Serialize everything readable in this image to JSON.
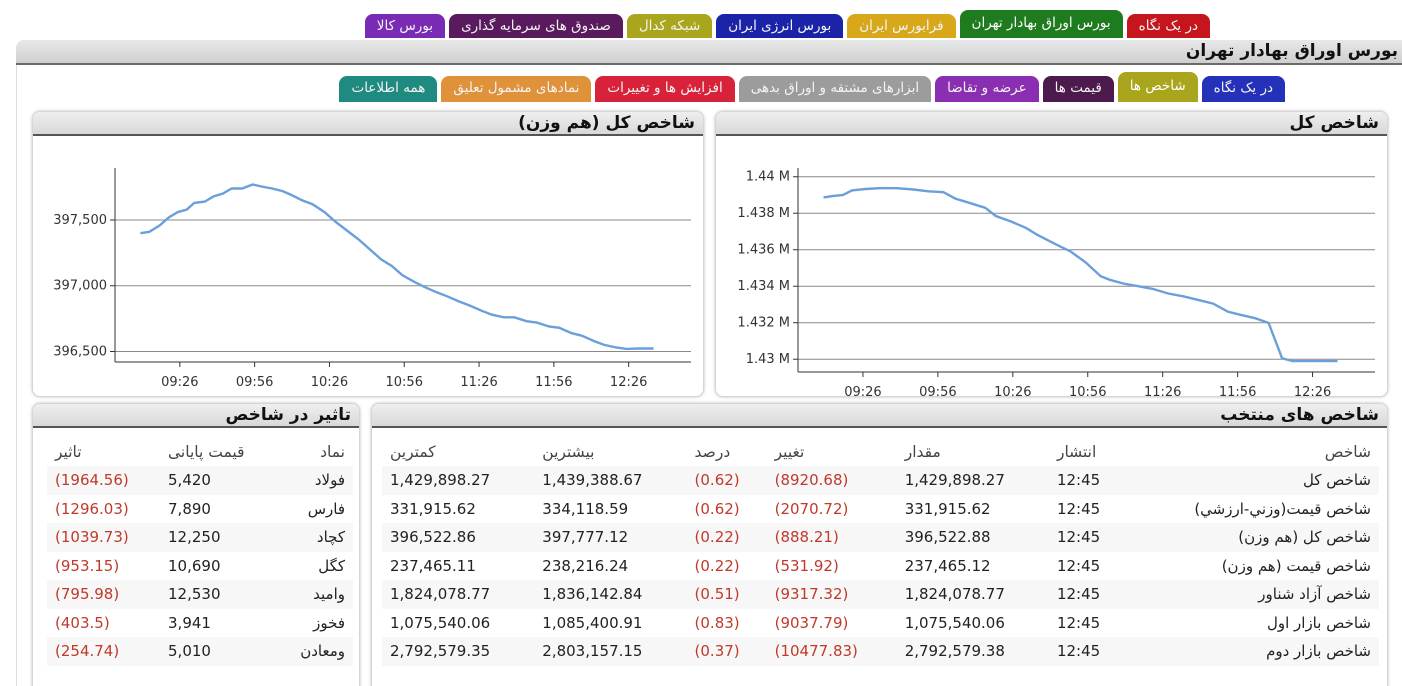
{
  "top_tabs": [
    {
      "label": "در یک نگاه",
      "color": "#c4161c",
      "active": false
    },
    {
      "label": "بورس اوراق بهادار تهران",
      "color": "#1e7b1e",
      "active": true
    },
    {
      "label": "فرابورس ایران",
      "color": "#d8a81a",
      "active": false
    },
    {
      "label": "بورس انرژی ایران",
      "color": "#1b24a8",
      "active": false
    },
    {
      "label": "شبکه کدال",
      "color": "#a9a51c",
      "active": false
    },
    {
      "label": "صندوق های سرمایه گذاری",
      "color": "#5a1a5e",
      "active": false
    },
    {
      "label": "بورس کالا",
      "color": "#7a2bb6",
      "active": false
    }
  ],
  "page_title": "بورس اوراق بهادار تهران",
  "sub_tabs": [
    {
      "label": "در یک نگاه",
      "color": "#2431b8",
      "active": false
    },
    {
      "label": "شاخص ها",
      "color": "#a9a51c",
      "active": true
    },
    {
      "label": "قیمت ها",
      "color": "#4c1a4c",
      "active": false
    },
    {
      "label": "عرضه و تقاضا",
      "color": "#8a2fb2",
      "active": false
    },
    {
      "label": "ابزارهای مشتقه و اوراق بدهی",
      "color": "#9c9c9c",
      "active": false
    },
    {
      "label": "افزایش ها و تغییرات",
      "color": "#d8223a",
      "active": false
    },
    {
      "label": "نمادهای مشمول تعلیق",
      "color": "#e0923a",
      "active": false
    },
    {
      "label": "همه اطلاعات",
      "color": "#1f8a80",
      "active": false
    }
  ],
  "chart_data": [
    {
      "type": "line",
      "title": "شاخص کل",
      "x_ticks": [
        "09:26",
        "09:56",
        "10:26",
        "10:56",
        "11:26",
        "11:56",
        "12:26"
      ],
      "y_ticks": [
        "1.43 M",
        "1.432 M",
        "1.434 M",
        "1.436 M",
        "1.438 M",
        "1.44 M"
      ],
      "ylim": [
        1429300,
        1440150
      ],
      "xlim": [
        9.0,
        12.85
      ],
      "grid": true,
      "color": "#6a9fdb",
      "x": [
        9.17,
        9.23,
        9.3,
        9.36,
        9.45,
        9.56,
        9.66,
        9.77,
        9.87,
        9.97,
        10.05,
        10.15,
        10.25,
        10.32,
        10.42,
        10.52,
        10.6,
        10.72,
        10.82,
        10.92,
        11.02,
        11.08,
        11.17,
        11.27,
        11.37,
        11.47,
        11.57,
        11.67,
        11.77,
        11.87,
        11.97,
        12.05,
        12.14,
        12.23,
        12.3,
        12.42,
        12.5,
        12.6
      ],
      "y": [
        1438870,
        1438940,
        1439000,
        1439250,
        1439330,
        1439380,
        1439370,
        1439300,
        1439200,
        1439150,
        1438800,
        1438550,
        1438300,
        1437850,
        1437550,
        1437200,
        1436800,
        1436300,
        1435900,
        1435300,
        1434550,
        1434350,
        1434150,
        1434000,
        1433850,
        1433600,
        1433450,
        1433250,
        1433050,
        1432600,
        1432400,
        1432250,
        1431990,
        1430050,
        1429900,
        1429898,
        1429898,
        1429898
      ]
    },
    {
      "type": "line",
      "title": "شاخص کل (هم وزن)",
      "x_ticks": [
        "09:26",
        "09:56",
        "10:26",
        "10:56",
        "11:26",
        "11:56",
        "12:26"
      ],
      "y_ticks": [
        "396,500",
        "397,000",
        "397,500"
      ],
      "ylim": [
        396420,
        397850
      ],
      "xlim": [
        9.0,
        12.85
      ],
      "grid": true,
      "color": "#6a9fdb",
      "x": [
        9.17,
        9.23,
        9.3,
        9.36,
        9.42,
        9.48,
        9.53,
        9.6,
        9.66,
        9.72,
        9.78,
        9.85,
        9.92,
        9.98,
        10.05,
        10.12,
        10.18,
        10.25,
        10.32,
        10.4,
        10.47,
        10.55,
        10.63,
        10.7,
        10.78,
        10.85,
        10.92,
        11.0,
        11.07,
        11.15,
        11.22,
        11.3,
        11.37,
        11.45,
        11.52,
        11.6,
        11.67,
        11.75,
        11.82,
        11.9,
        11.97,
        12.05,
        12.12,
        12.2,
        12.27,
        12.35,
        12.42,
        12.5,
        12.6
      ],
      "y": [
        397400,
        397410,
        397460,
        397520,
        397560,
        397580,
        397630,
        397640,
        397680,
        397700,
        397740,
        397740,
        397770,
        397755,
        397740,
        397720,
        397690,
        397650,
        397620,
        397560,
        397490,
        397420,
        397350,
        397280,
        397200,
        397150,
        397080,
        397030,
        396990,
        396950,
        396920,
        396880,
        396850,
        396810,
        396780,
        396760,
        396760,
        396730,
        396720,
        396690,
        396680,
        396640,
        396620,
        396580,
        396550,
        396530,
        396520,
        396523,
        396523
      ]
    }
  ],
  "impact": {
    "title": "تاثیر در شاخص",
    "headers": [
      "نماد",
      "قیمت پایانی",
      "تاثیر"
    ],
    "rows": [
      [
        "فولاد",
        "5,420",
        "(1964.56)"
      ],
      [
        "فارس",
        "7,890",
        "(1296.03)"
      ],
      [
        "کچاد",
        "12,250",
        "(1039.73)"
      ],
      [
        "کگل",
        "10,690",
        "(953.15)"
      ],
      [
        "وامید",
        "12,530",
        "(795.98)"
      ],
      [
        "فخوز",
        "3,941",
        "(403.5)"
      ],
      [
        "ومعادن",
        "5,010",
        "(254.74)"
      ]
    ]
  },
  "indices": {
    "title": "شاخص های منتخب",
    "headers": [
      "شاخص",
      "انتشار",
      "مقدار",
      "تغییر",
      "درصد",
      "بیشترین",
      "کمترین"
    ],
    "rows": [
      [
        "شاخص کل",
        "12:45",
        "1,429,898.27",
        "(8920.68)",
        "(0.62)",
        "1,439,388.67",
        "1,429,898.27"
      ],
      [
        "شاخص قیمت(وزني-ارزشي)",
        "12:45",
        "331,915.62",
        "(2070.72)",
        "(0.62)",
        "334,118.59",
        "331,915.62"
      ],
      [
        "شاخص کل (هم وزن)",
        "12:45",
        "396,522.88",
        "(888.21)",
        "(0.22)",
        "397,777.12",
        "396,522.86"
      ],
      [
        "شاخص قیمت (هم وزن)",
        "12:45",
        "237,465.12",
        "(531.92)",
        "(0.22)",
        "238,216.24",
        "237,465.11"
      ],
      [
        "شاخص آزاد شناور",
        "12:45",
        "1,824,078.77",
        "(9317.32)",
        "(0.51)",
        "1,836,142.84",
        "1,824,078.77"
      ],
      [
        "شاخص بازار اول",
        "12:45",
        "1,075,540.06",
        "(9037.79)",
        "(0.83)",
        "1,085,400.91",
        "1,075,540.06"
      ],
      [
        "شاخص بازار دوم",
        "12:45",
        "2,792,579.38",
        "(10477.83)",
        "(0.37)",
        "2,803,157.15",
        "2,792,579.35"
      ]
    ]
  }
}
